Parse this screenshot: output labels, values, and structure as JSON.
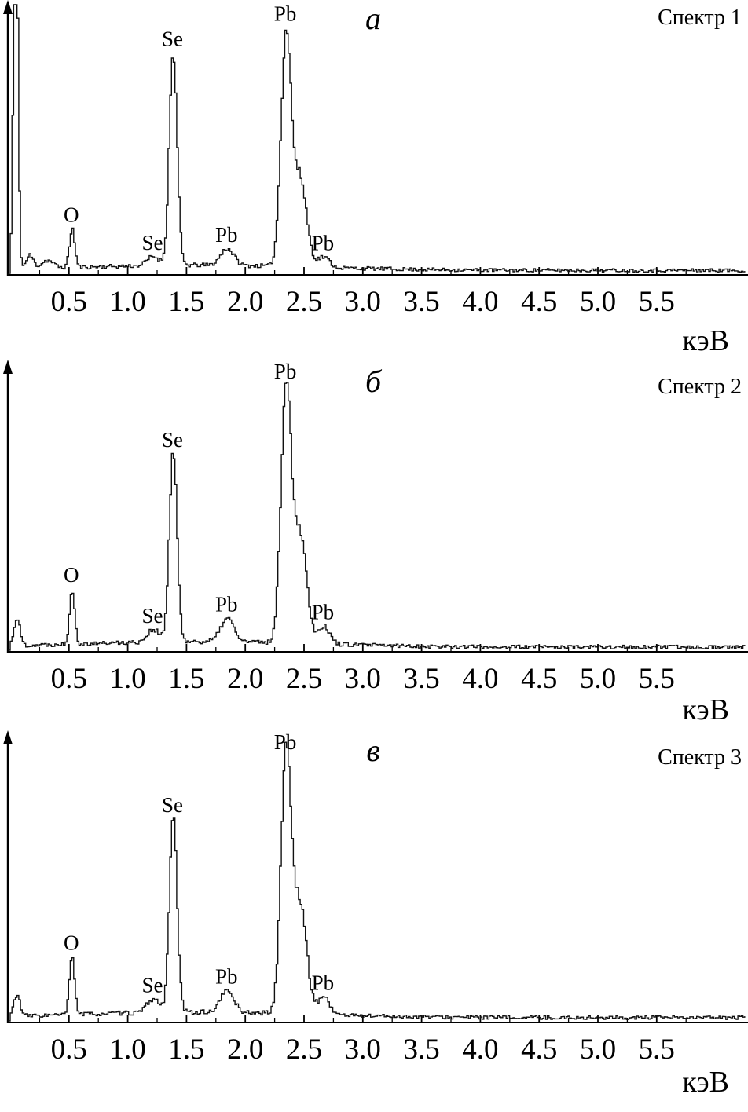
{
  "figure": {
    "background": "#ffffff",
    "curve_color": "#111111",
    "text_color": "#000000"
  },
  "chart_data": [
    {
      "type": "line",
      "panel_label": "а",
      "title": "Спектр 1",
      "xlabel": "кэВ",
      "xlim": [
        0,
        6.25
      ],
      "x_ticks": [
        0.5,
        1.0,
        1.5,
        2.0,
        2.5,
        3.0,
        3.5,
        4.0,
        4.5,
        5.0,
        5.5
      ],
      "x_tick_labels": [
        "0.5",
        "1.0",
        "1.5",
        "2.0",
        "2.5",
        "3.0",
        "3.5",
        "4.0",
        "4.5",
        "5.0",
        "5.5"
      ],
      "grid": false,
      "seed": 11,
      "baseline_level": 0.013,
      "noise_level": 0.0085,
      "background": [
        {
          "center": 1.6,
          "height": 0.02,
          "width": 1.0
        }
      ],
      "peaks": [
        {
          "element": "",
          "energy": 0.04,
          "rel_height": 1.6,
          "width": 0.018,
          "labeled": false
        },
        {
          "element": "",
          "energy": 0.16,
          "rel_height": 0.05,
          "width": 0.03,
          "labeled": false
        },
        {
          "element": "",
          "energy": 0.31,
          "rel_height": 0.03,
          "width": 0.05,
          "labeled": false
        },
        {
          "element": "O",
          "energy": 0.52,
          "rel_height": 0.15,
          "width": 0.022,
          "labeled": true
        },
        {
          "element": "Se",
          "energy": 1.21,
          "rel_height": 0.035,
          "width": 0.05,
          "labeled": true
        },
        {
          "element": "Se",
          "energy": 1.38,
          "rel_height": 0.82,
          "width": 0.033,
          "labeled": true
        },
        {
          "element": "Pb",
          "energy": 1.84,
          "rel_height": 0.065,
          "width": 0.055,
          "labeled": true
        },
        {
          "element": "Pb",
          "energy": 2.34,
          "rel_height": 0.89,
          "width": 0.043,
          "labeled": true
        },
        {
          "element": "",
          "energy": 2.46,
          "rel_height": 0.34,
          "width": 0.055,
          "labeled": false
        },
        {
          "element": "Pb",
          "energy": 2.66,
          "rel_height": 0.04,
          "width": 0.05,
          "labeled": true
        }
      ]
    },
    {
      "type": "line",
      "panel_label": "б",
      "title": "Спектр 2",
      "xlabel": "кэВ",
      "xlim": [
        0,
        6.25
      ],
      "x_ticks": [
        0.5,
        1.0,
        1.5,
        2.0,
        2.5,
        3.0,
        3.5,
        4.0,
        4.5,
        5.0,
        5.5
      ],
      "x_tick_labels": [
        "0.5",
        "1.0",
        "1.5",
        "2.0",
        "2.5",
        "3.0",
        "3.5",
        "4.0",
        "4.5",
        "5.0",
        "5.5"
      ],
      "grid": false,
      "seed": 22,
      "baseline_level": 0.013,
      "noise_level": 0.0085,
      "background": [
        {
          "center": 1.6,
          "height": 0.02,
          "width": 1.0
        }
      ],
      "peaks": [
        {
          "element": "",
          "energy": 0.05,
          "rel_height": 0.1,
          "width": 0.025,
          "labeled": false
        },
        {
          "element": "O",
          "energy": 0.52,
          "rel_height": 0.2,
          "width": 0.022,
          "labeled": true
        },
        {
          "element": "Se",
          "energy": 1.21,
          "rel_height": 0.045,
          "width": 0.05,
          "labeled": true
        },
        {
          "element": "Se",
          "energy": 1.38,
          "rel_height": 0.68,
          "width": 0.033,
          "labeled": true
        },
        {
          "element": "Pb",
          "energy": 1.84,
          "rel_height": 0.085,
          "width": 0.055,
          "labeled": true
        },
        {
          "element": "Pb",
          "energy": 2.34,
          "rel_height": 0.93,
          "width": 0.043,
          "labeled": true
        },
        {
          "element": "",
          "energy": 2.46,
          "rel_height": 0.4,
          "width": 0.055,
          "labeled": false
        },
        {
          "element": "Pb",
          "energy": 2.66,
          "rel_height": 0.065,
          "width": 0.05,
          "labeled": true
        }
      ]
    },
    {
      "type": "line",
      "panel_label": "в",
      "title": "Спектр 3",
      "xlabel": "кэВ",
      "xlim": [
        0,
        6.25
      ],
      "x_ticks": [
        0.5,
        1.0,
        1.5,
        2.0,
        2.5,
        3.0,
        3.5,
        4.0,
        4.5,
        5.0,
        5.5
      ],
      "x_tick_labels": [
        "0.5",
        "1.0",
        "1.5",
        "2.0",
        "2.5",
        "3.0",
        "3.5",
        "4.0",
        "4.5",
        "5.0",
        "5.5"
      ],
      "grid": false,
      "seed": 33,
      "baseline_level": 0.013,
      "noise_level": 0.0085,
      "background": [
        {
          "center": 1.6,
          "height": 0.02,
          "width": 1.0
        }
      ],
      "peaks": [
        {
          "element": "",
          "energy": 0.05,
          "rel_height": 0.08,
          "width": 0.025,
          "labeled": false
        },
        {
          "element": "O",
          "energy": 0.52,
          "rel_height": 0.21,
          "width": 0.022,
          "labeled": true
        },
        {
          "element": "Se",
          "energy": 1.21,
          "rel_height": 0.05,
          "width": 0.05,
          "labeled": true
        },
        {
          "element": "Se",
          "energy": 1.38,
          "rel_height": 0.7,
          "width": 0.033,
          "labeled": true
        },
        {
          "element": "Pb",
          "energy": 1.84,
          "rel_height": 0.08,
          "width": 0.055,
          "labeled": true
        },
        {
          "element": "Pb",
          "energy": 2.34,
          "rel_height": 0.95,
          "width": 0.043,
          "labeled": true
        },
        {
          "element": "",
          "energy": 2.46,
          "rel_height": 0.4,
          "width": 0.055,
          "labeled": false
        },
        {
          "element": "Pb",
          "energy": 2.66,
          "rel_height": 0.065,
          "width": 0.05,
          "labeled": true
        }
      ]
    }
  ]
}
